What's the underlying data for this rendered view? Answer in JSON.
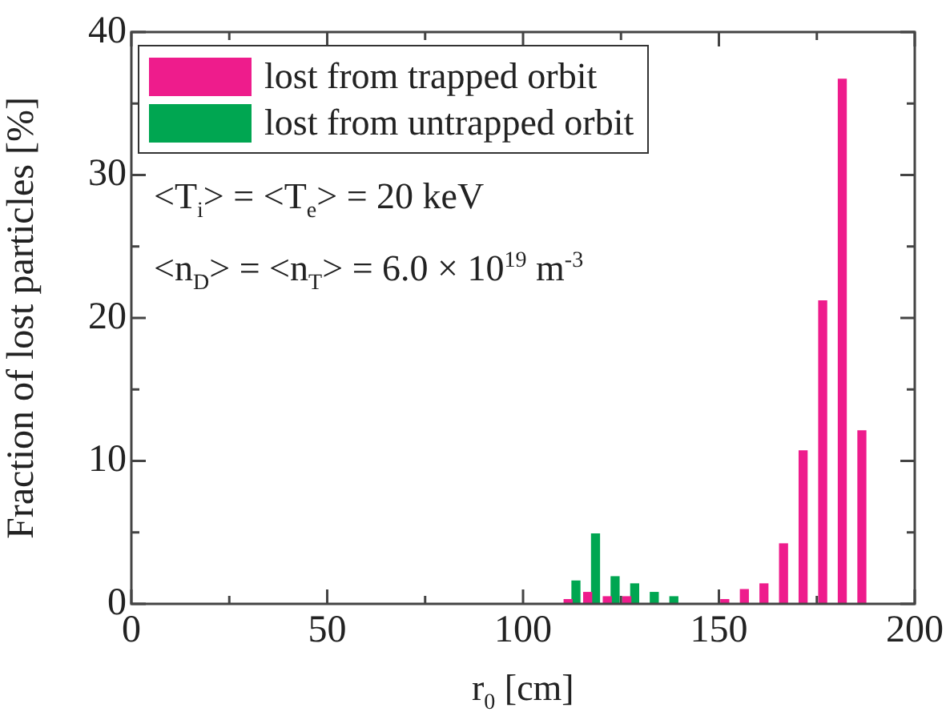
{
  "chart_data": {
    "type": "bar",
    "xlabel": "r$_{0}$ [cm]",
    "ylabel": "Fraction of lost particles [%]",
    "xlim": [
      0,
      200
    ],
    "xticks": [
      0,
      {
        "value": 25,
        "label": null
      },
      50,
      {
        "value": 75,
        "label": null
      },
      100,
      {
        "value": 125,
        "label": null
      },
      150,
      {
        "value": 175,
        "label": null
      },
      200
    ],
    "ylim": [
      0,
      40
    ],
    "yticks": [
      0,
      {
        "value": 5,
        "label": null
      },
      10,
      {
        "value": 15,
        "label": null
      },
      20,
      {
        "value": 25,
        "label": null
      },
      30,
      {
        "value": 35,
        "label": null
      },
      40
    ],
    "legend": "top left",
    "grid": false,
    "annotations": [
      "<T$_{i}$> = <T$_{e}$> = 20 keV",
      "<n$_{D}$> = <n$_{T}$> = 6.0 × 10$^{19}$ m$^{-3}$"
    ],
    "series": [
      {
        "name": "lost from trapped orbit",
        "color": "#ee1c8c",
        "x": [
          111.5,
          116.5,
          121.5,
          126.5,
          151.5,
          156.5,
          161.5,
          166.5,
          171.5,
          176.5,
          181.5,
          186.5
        ],
        "values": [
          0.3,
          0.8,
          0.5,
          0.5,
          0.3,
          1.0,
          1.4,
          4.2,
          10.7,
          21.2,
          36.7,
          12.1
        ]
      },
      {
        "name": "lost from untrapped orbit",
        "color": "#00a651",
        "x": [
          113.5,
          118.5,
          123.5,
          128.5,
          133.5,
          138.5
        ],
        "values": [
          1.6,
          4.9,
          1.9,
          1.4,
          0.8,
          0.5
        ]
      }
    ]
  }
}
